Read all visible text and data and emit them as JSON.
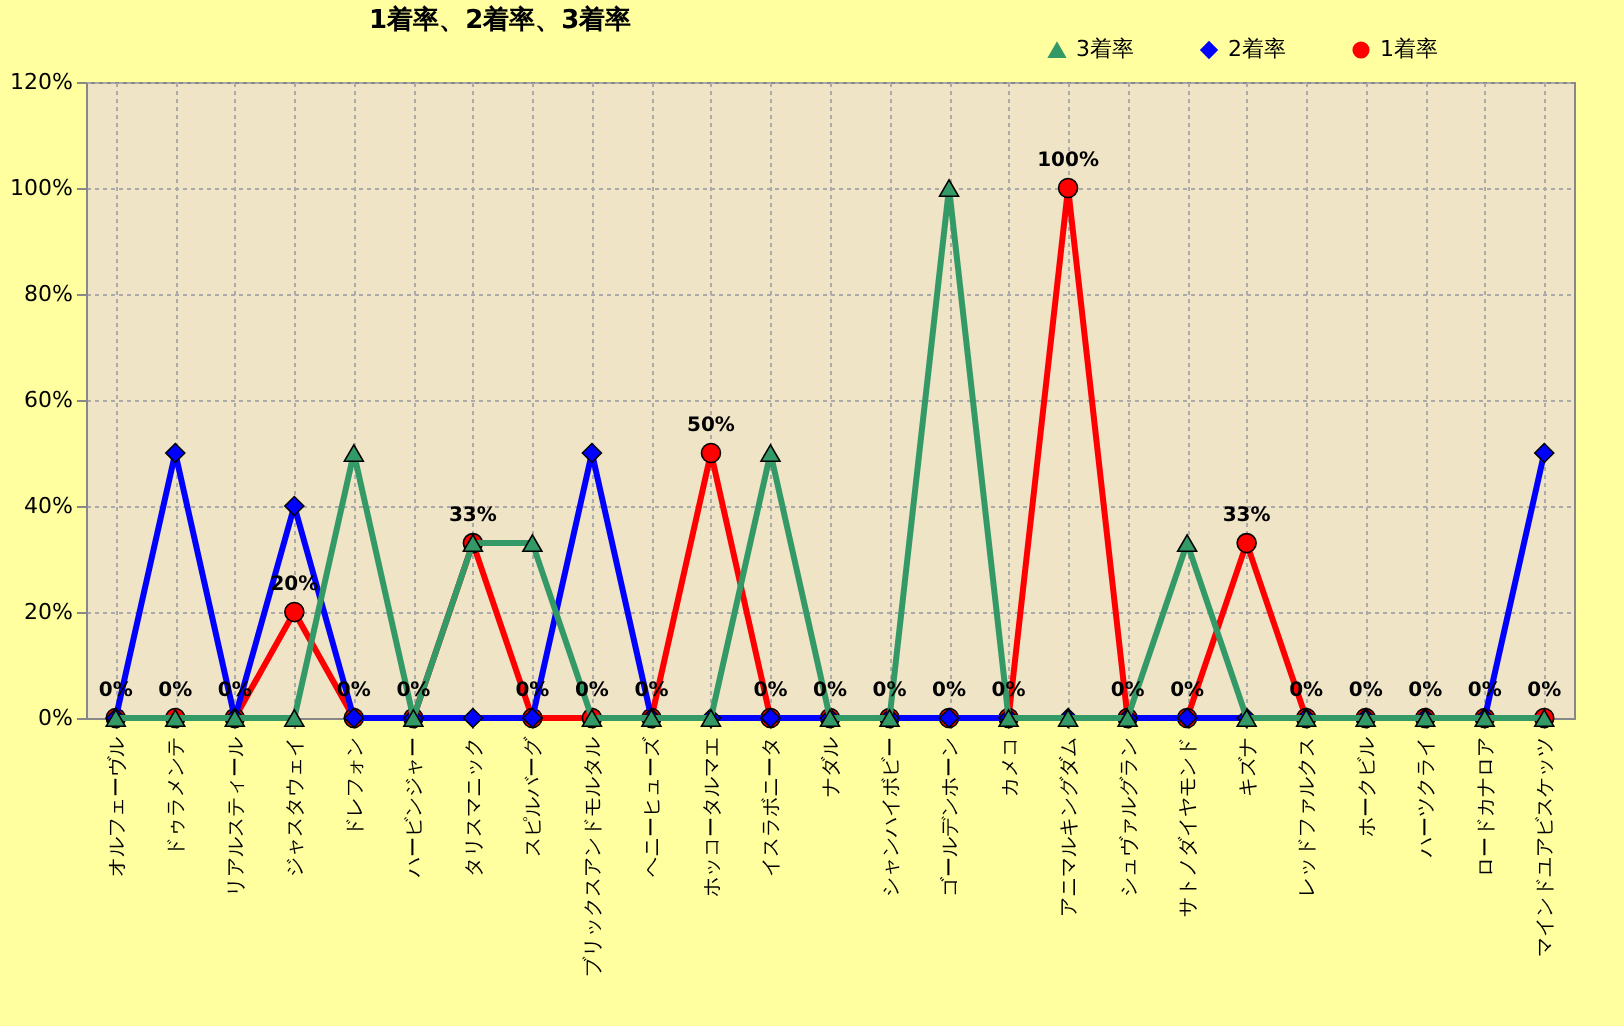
{
  "chart_data": {
    "type": "line",
    "title": "1着率、2着率、3着率",
    "categories": [
      "オルフェーヴル",
      "ドゥラメンテ",
      "リアルスティール",
      "ジャスタウェイ",
      "ドレフォン",
      "ハービンジャー",
      "タリスマニック",
      "スピルバーグ",
      "ブリックスアンドモルタル",
      "ヘニーヒューズ",
      "ホッコータルマエ",
      "イスラボニータ",
      "ナダル",
      "シャンハイボビー",
      "ゴールデンホーン",
      "カメコ",
      "アニマルキングダム",
      "シュヴァルグラン",
      "サトノダイヤモンド",
      "キズナ",
      "レッドファルクス",
      "ホークビル",
      "ハーツクライ",
      "ロードカナロア",
      "マインドユアビスケッツ"
    ],
    "series": [
      {
        "name": "3着率",
        "color": "#339966",
        "marker": "triangle",
        "values": [
          0,
          0,
          0,
          0,
          50,
          0,
          33,
          33,
          0,
          0,
          0,
          50,
          0,
          0,
          100,
          0,
          0,
          0,
          33,
          0,
          0,
          0,
          0,
          0,
          0
        ]
      },
      {
        "name": "2着率",
        "color": "#0000ff",
        "marker": "diamond",
        "values": [
          0,
          50,
          0,
          40,
          0,
          0,
          0,
          0,
          50,
          0,
          0,
          0,
          0,
          0,
          0,
          0,
          0,
          0,
          0,
          0,
          0,
          0,
          0,
          0,
          50
        ]
      },
      {
        "name": "1着率",
        "color": "#ff0000",
        "marker": "circle",
        "values": [
          0,
          0,
          0,
          20,
          0,
          0,
          33,
          0,
          0,
          0,
          50,
          0,
          0,
          0,
          0,
          0,
          100,
          0,
          0,
          33,
          0,
          0,
          0,
          0,
          0
        ],
        "value_labels": [
          "0%",
          "0%",
          "0%",
          "20%",
          "0%",
          "0%",
          "33%",
          "0%",
          "0%",
          "0%",
          "50%",
          "0%",
          "0%",
          "0%",
          "0%",
          "0%",
          "100%",
          "0%",
          "0%",
          "33%",
          "0%",
          "0%",
          "0%",
          "0%",
          "0%"
        ]
      }
    ],
    "ylim": [
      0,
      120
    ],
    "yticks": [
      {
        "value": 0,
        "label": "0%"
      },
      {
        "value": 20,
        "label": "20%"
      },
      {
        "value": 40,
        "label": "40%"
      },
      {
        "value": 60,
        "label": "60%"
      },
      {
        "value": 80,
        "label": "80%"
      },
      {
        "value": 100,
        "label": "100%"
      },
      {
        "value": 120,
        "label": "120%"
      }
    ],
    "grid": true,
    "legend": "top right",
    "line_style": "solid"
  }
}
